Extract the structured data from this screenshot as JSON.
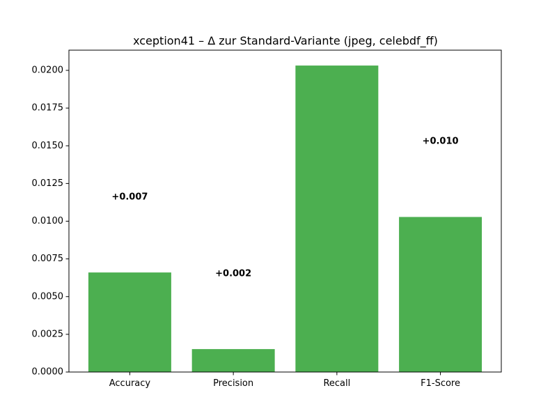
{
  "chart_data": {
    "type": "bar",
    "title": "xception41 – Δ zur Standard-Variante (jpeg, celebdf_ff)",
    "xlabel": "",
    "ylabel": "",
    "categories": [
      "Accuracy",
      "Precision",
      "Recall",
      "F1-Score"
    ],
    "values": [
      0.0066,
      0.00152,
      0.02032,
      0.01028
    ],
    "data_labels": [
      "+0.007",
      "+0.002",
      "",
      "+0.010"
    ],
    "ylim": [
      0,
      0.02134
    ],
    "yticks": [
      0.0,
      0.0025,
      0.005,
      0.0075,
      0.01,
      0.0125,
      0.015,
      0.0175,
      0.02
    ],
    "ytick_labels": [
      "0.0000",
      "0.0025",
      "0.0050",
      "0.0075",
      "0.0100",
      "0.0125",
      "0.0150",
      "0.0175",
      "0.0200"
    ],
    "bar_color": "#4caf50",
    "grid": false
  }
}
